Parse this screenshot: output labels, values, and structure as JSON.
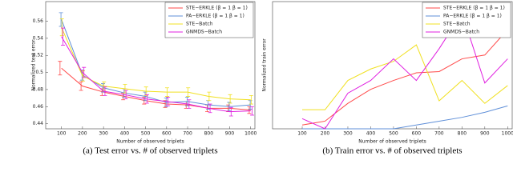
{
  "chart_data": [
    {
      "type": "line",
      "caption": "(a) Test error vs. # of observed triplets",
      "xlabel": "Number of observed triplets",
      "ylabel": "Normalized test error",
      "x": [
        100,
        200,
        300,
        400,
        500,
        600,
        700,
        800,
        900,
        1000
      ],
      "xlim": [
        25,
        1020
      ],
      "xticks": [
        100,
        200,
        300,
        400,
        500,
        600,
        700,
        800,
        900,
        1000
      ],
      "ylim": [
        0.434,
        0.583
      ],
      "yticks": [
        0.44,
        0.46,
        0.48,
        0.5,
        0.52,
        0.54,
        0.56
      ],
      "legend": "upper right",
      "series": [
        {
          "name": "STE−ERKLE (β = 1 β = 1)",
          "color": "#ff4a4a",
          "values": [
            0.505,
            0.484,
            0.477,
            0.472,
            0.467,
            0.463,
            0.462,
            0.458,
            0.458,
            0.456
          ],
          "errors": [
            0.008,
            0.005,
            0.004,
            0.004,
            0.004,
            0.004,
            0.004,
            0.004,
            0.004,
            0.004
          ]
        },
        {
          "name": "PA−ERKLE (β = 1 β = 1)",
          "color": "#5f8fd8",
          "values": [
            0.562,
            0.497,
            0.482,
            0.476,
            0.472,
            0.465,
            0.466,
            0.462,
            0.46,
            0.462
          ],
          "errors": [
            0.008,
            0.006,
            0.005,
            0.005,
            0.005,
            0.005,
            0.005,
            0.005,
            0.005,
            0.005
          ]
        },
        {
          "name": "STE−Batch",
          "color": "#f0e020",
          "values": [
            0.553,
            0.496,
            0.484,
            0.481,
            0.478,
            0.477,
            0.477,
            0.472,
            0.469,
            0.468
          ],
          "errors": [
            0.01,
            0.006,
            0.005,
            0.005,
            0.005,
            0.005,
            0.005,
            0.005,
            0.005,
            0.005
          ]
        },
        {
          "name": "GNMDS−Batch",
          "color": "#e020e0",
          "values": [
            0.542,
            0.5,
            0.478,
            0.474,
            0.469,
            0.466,
            0.463,
            0.458,
            0.454,
            0.455
          ],
          "errors": [
            0.01,
            0.006,
            0.005,
            0.005,
            0.005,
            0.005,
            0.005,
            0.005,
            0.005,
            0.005
          ]
        }
      ]
    },
    {
      "type": "line",
      "caption": "(b) Train error vs. # of observed triplets",
      "xlabel": "Number of observed triplets",
      "ylabel": "Normalized train error",
      "x": [
        100,
        200,
        300,
        400,
        500,
        600,
        700,
        800,
        900,
        1000
      ],
      "xlim": [
        -30,
        1020
      ],
      "xticks": [
        100,
        200,
        300,
        400,
        500,
        600,
        700,
        800,
        900,
        1000
      ],
      "ylim": [
        0,
        1
      ],
      "legend": "upper right",
      "series": [
        {
          "name": "STE−ERKLE (β = 1 β = 1)",
          "color": "#ff4a4a",
          "values": [
            0.03,
            0.06,
            0.2,
            0.31,
            0.38,
            0.44,
            0.45,
            0.55,
            0.58,
            0.78
          ]
        },
        {
          "name": "PA−ERKLE (β = 1 β = 1)",
          "color": "#5f8fd8",
          "values": [
            0,
            0,
            0,
            0,
            0,
            0.03,
            0.06,
            0.09,
            0.13,
            0.18
          ]
        },
        {
          "name": "STE−Batch",
          "color": "#f0e020",
          "values": [
            0.15,
            0.15,
            0.38,
            0.47,
            0.53,
            0.66,
            0.22,
            0.38,
            0.2,
            0.34
          ]
        },
        {
          "name": "GNMDS−Batch",
          "color": "#e020e0",
          "values": [
            0.08,
            0,
            0.28,
            0.38,
            0.55,
            0.38,
            0.63,
            0.91,
            0.36,
            0.55
          ]
        }
      ]
    }
  ]
}
